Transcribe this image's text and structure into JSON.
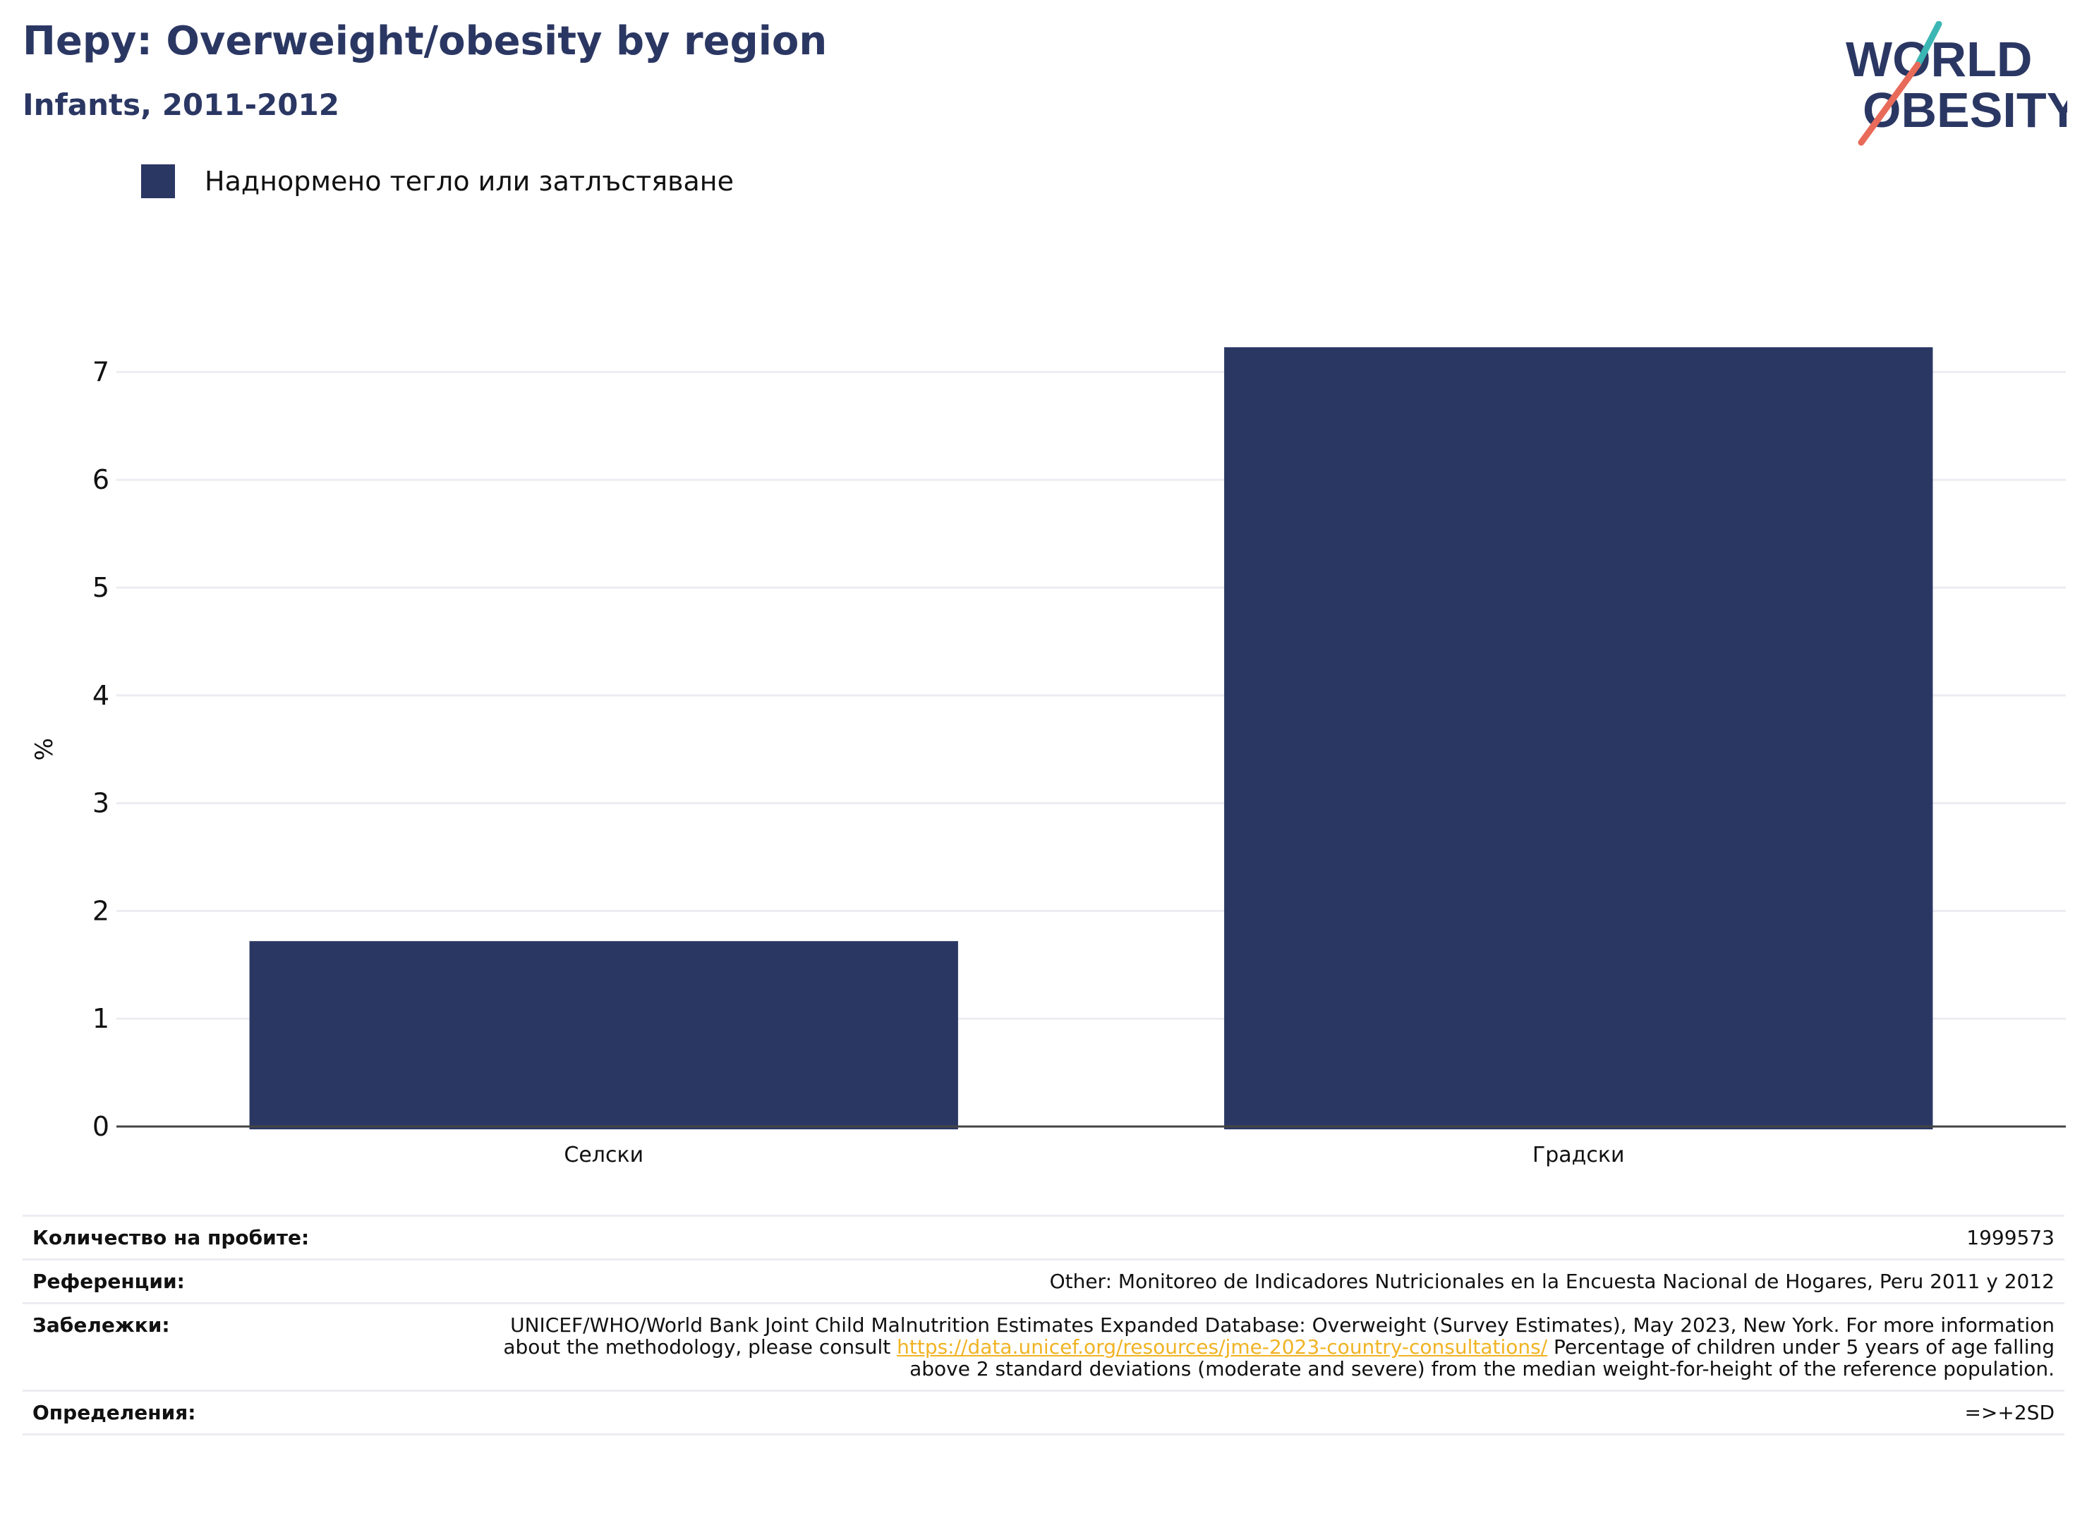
{
  "header": {
    "title": "Перу: Overweight/obesity by region",
    "subtitle": "Infants, 2011-2012"
  },
  "logo": {
    "line1": "WORLD",
    "line2": "OBESITY",
    "text_color": "#2b3763",
    "accent_teal": "#3bb6b4",
    "accent_red": "#e86b59"
  },
  "legend": {
    "label": "Наднормено тегло или затлъстяване",
    "color": "#2b3763"
  },
  "chart_data": {
    "type": "bar",
    "title": "Перу: Overweight/obesity by region",
    "subtitle": "Infants, 2011-2012",
    "categories": [
      "Селски",
      "Градски"
    ],
    "series": [
      {
        "name": "Наднормено тегло или затлъстяване",
        "values": [
          1.72,
          7.23
        ],
        "color": "#2b3763"
      }
    ],
    "ylabel": "%",
    "xlabel": "",
    "ylim": [
      0,
      8
    ],
    "yticks": [
      0,
      1,
      2,
      3,
      4,
      5,
      6,
      7
    ],
    "grid": true,
    "legend_position": "top-left"
  },
  "info": {
    "sample_size": {
      "label": "Количество на пробите:",
      "value": "1999573"
    },
    "references": {
      "label": "Референции:",
      "value": "Other: Monitoreo de Indicadores Nutricionales en la Encuesta Nacional de Hogares, Peru 2011 y 2012"
    },
    "notes": {
      "label": "Забележки:",
      "text_before": "UNICEF/WHO/World Bank Joint Child Malnutrition Estimates Expanded Database: Overweight (Survey Estimates), May 2023, New York. For more information about the methodology, please consult ",
      "link": "https://data.unicef.org/resources/jme-2023-country-consultations/",
      "text_after": " Percentage of children under 5 years of age falling above 2 standard deviations (moderate and severe) from the median weight-for-height of the reference population."
    },
    "definitions": {
      "label": "Определения:",
      "value": "=>+2SD"
    }
  }
}
